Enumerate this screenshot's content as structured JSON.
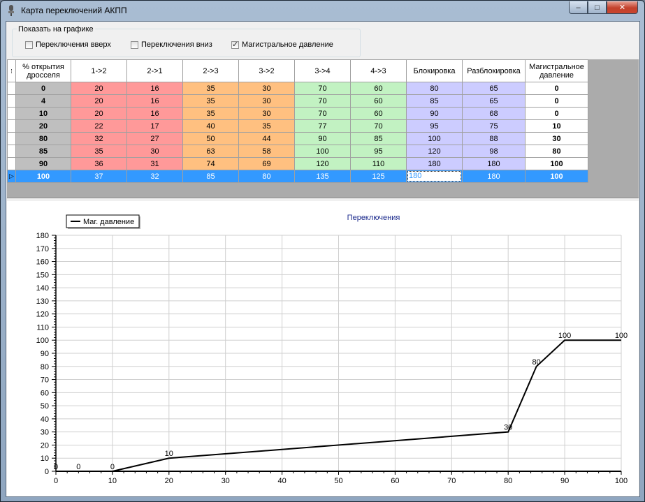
{
  "window": {
    "title": "Карта переключений АКПП"
  },
  "titlebar": {
    "minimize_glyph": "–",
    "maximize_glyph": "□",
    "close_glyph": "✕"
  },
  "options": {
    "group_title": "Показать на графике",
    "checkboxes": [
      {
        "label": "Переключения вверх",
        "checked": false
      },
      {
        "label": "Переключения вниз",
        "checked": false
      },
      {
        "label": "Магистральное давление",
        "checked": true
      }
    ]
  },
  "table": {
    "columns": [
      "% открытия дросселя",
      "1->2",
      "2->1",
      "2->3",
      "3->2",
      "3->4",
      "4->3",
      "Блокировка",
      "Разблокировка",
      "Магистральное давление"
    ],
    "column_colors": [
      "#bfbfbf",
      "#ff9999",
      "#ff9999",
      "#ffc080",
      "#ffc080",
      "#c2f2c2",
      "#c2f2c2",
      "#ccccff",
      "#ccccff",
      "#ffffff"
    ],
    "rows": [
      [
        "0",
        "20",
        "16",
        "35",
        "30",
        "70",
        "60",
        "80",
        "65",
        "0"
      ],
      [
        "4",
        "20",
        "16",
        "35",
        "30",
        "70",
        "60",
        "85",
        "65",
        "0"
      ],
      [
        "10",
        "20",
        "16",
        "35",
        "30",
        "70",
        "60",
        "90",
        "68",
        "0"
      ],
      [
        "20",
        "22",
        "17",
        "40",
        "35",
        "77",
        "70",
        "95",
        "75",
        "10"
      ],
      [
        "80",
        "32",
        "27",
        "50",
        "44",
        "90",
        "85",
        "100",
        "88",
        "30"
      ],
      [
        "85",
        "35",
        "30",
        "63",
        "58",
        "100",
        "95",
        "120",
        "98",
        "80"
      ],
      [
        "90",
        "36",
        "31",
        "74",
        "69",
        "120",
        "110",
        "180",
        "180",
        "100"
      ],
      [
        "100",
        "37",
        "32",
        "85",
        "80",
        "135",
        "125",
        "180",
        "180",
        "100"
      ]
    ],
    "selected_row": 7,
    "editing_column": 7
  },
  "chart_data": {
    "type": "line",
    "title": "Переключения",
    "legend": {
      "placement": "top-left",
      "entries": [
        "Маг. давление"
      ]
    },
    "xlim": [
      0,
      100
    ],
    "ylim": [
      0,
      180
    ],
    "x_ticks": [
      "0",
      "10",
      "20",
      "30",
      "40",
      "50",
      "60",
      "70",
      "80",
      "90",
      "100"
    ],
    "y_ticks": [
      "0",
      "10",
      "20",
      "30",
      "40",
      "50",
      "60",
      "70",
      "80",
      "90",
      "100",
      "110",
      "120",
      "130",
      "140",
      "150",
      "160",
      "170",
      "180"
    ],
    "grid": true,
    "series": [
      {
        "name": "Маг. давление",
        "color": "#000000",
        "x": [
          0,
          4,
          10,
          20,
          80,
          85,
          90,
          100
        ],
        "y": [
          0,
          0,
          0,
          10,
          30,
          80,
          100,
          100
        ],
        "labels": [
          "0",
          "0",
          "0",
          "10",
          "30",
          "80",
          "100",
          "100"
        ]
      }
    ]
  }
}
